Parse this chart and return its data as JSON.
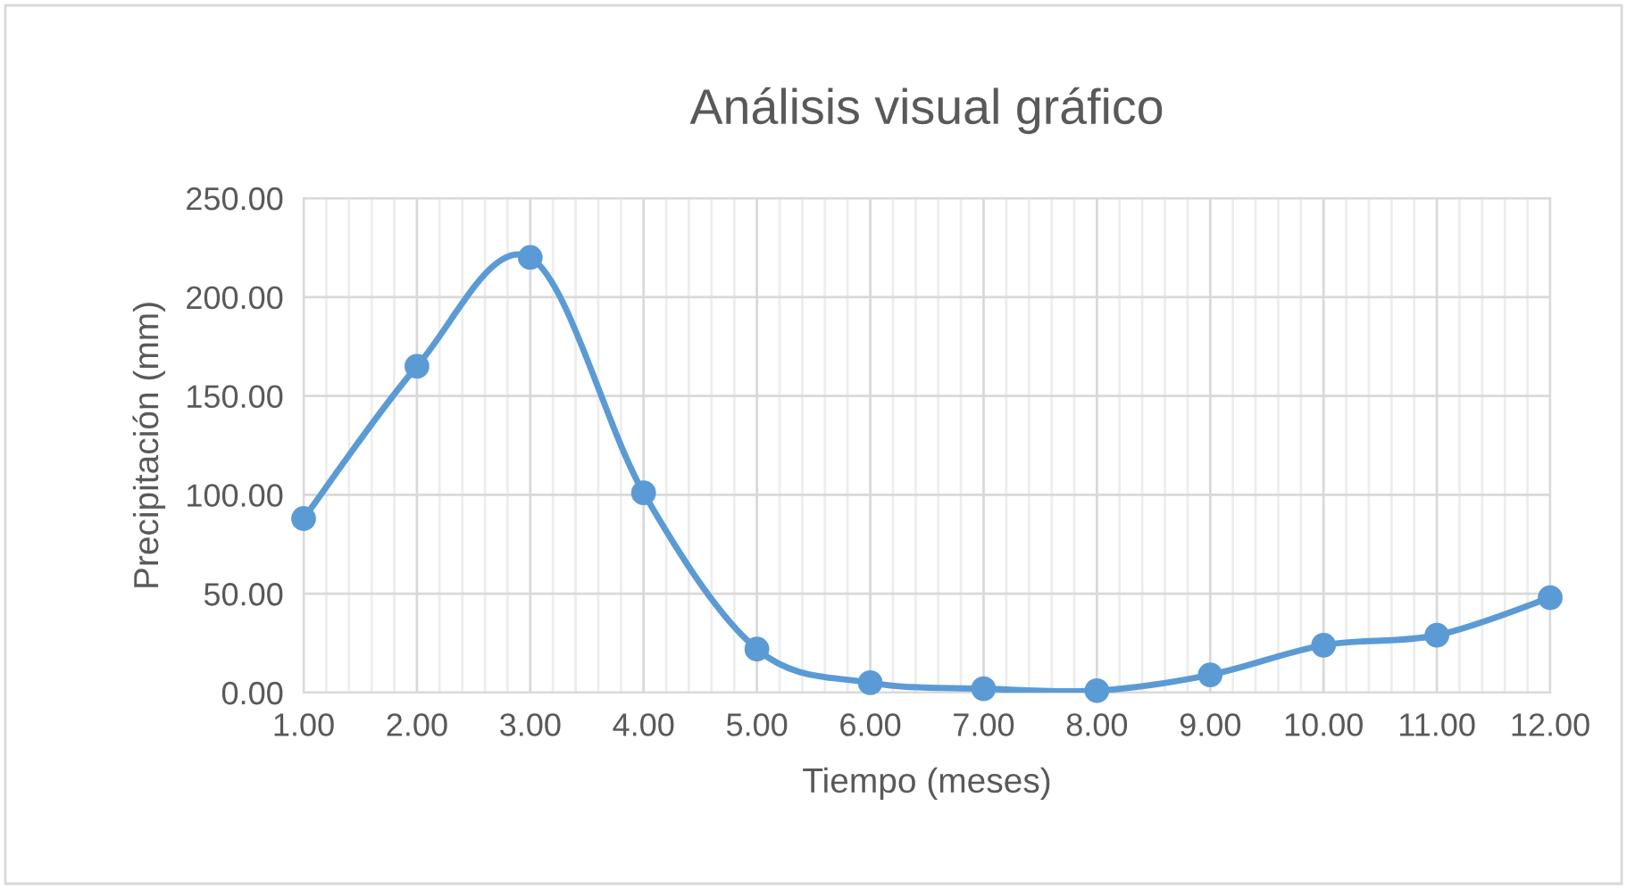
{
  "chart_data": {
    "type": "line",
    "title": "Análisis visual gráfico",
    "xlabel": "Tiempo (meses)",
    "ylabel": "Precipitación (mm)",
    "x": [
      1,
      2,
      3,
      4,
      5,
      6,
      7,
      8,
      9,
      10,
      11,
      12
    ],
    "series": [
      {
        "color": "#5b9bd5",
        "values": [
          88,
          165,
          220,
          101,
          22,
          5,
          2,
          1,
          9,
          24,
          29,
          48
        ]
      }
    ],
    "xlim": [
      1,
      12
    ],
    "xticks": [
      {
        "value": 1,
        "label": "1.00"
      },
      {
        "value": 2,
        "label": "2.00"
      },
      {
        "value": 3,
        "label": "3.00"
      },
      {
        "value": 4,
        "label": "4.00"
      },
      {
        "value": 5,
        "label": "5.00"
      },
      {
        "value": 6,
        "label": "6.00"
      },
      {
        "value": 7,
        "label": "7.00"
      },
      {
        "value": 8,
        "label": "8.00"
      },
      {
        "value": 9,
        "label": "9.00"
      },
      {
        "value": 10,
        "label": "10.00"
      },
      {
        "value": 11,
        "label": "11.00"
      },
      {
        "value": 12,
        "label": "12.00"
      }
    ],
    "ylim": [
      0,
      250
    ],
    "yticks": [
      {
        "value": 0,
        "label": "0.00"
      },
      {
        "value": 50,
        "label": "50.00"
      },
      {
        "value": 100,
        "label": "100.00"
      },
      {
        "value": 150,
        "label": "150.00"
      },
      {
        "value": 200,
        "label": "200.00"
      },
      {
        "value": 250,
        "label": "250.00"
      }
    ],
    "grid": true,
    "marker": "circle",
    "line_style": "solid",
    "legend": false
  }
}
